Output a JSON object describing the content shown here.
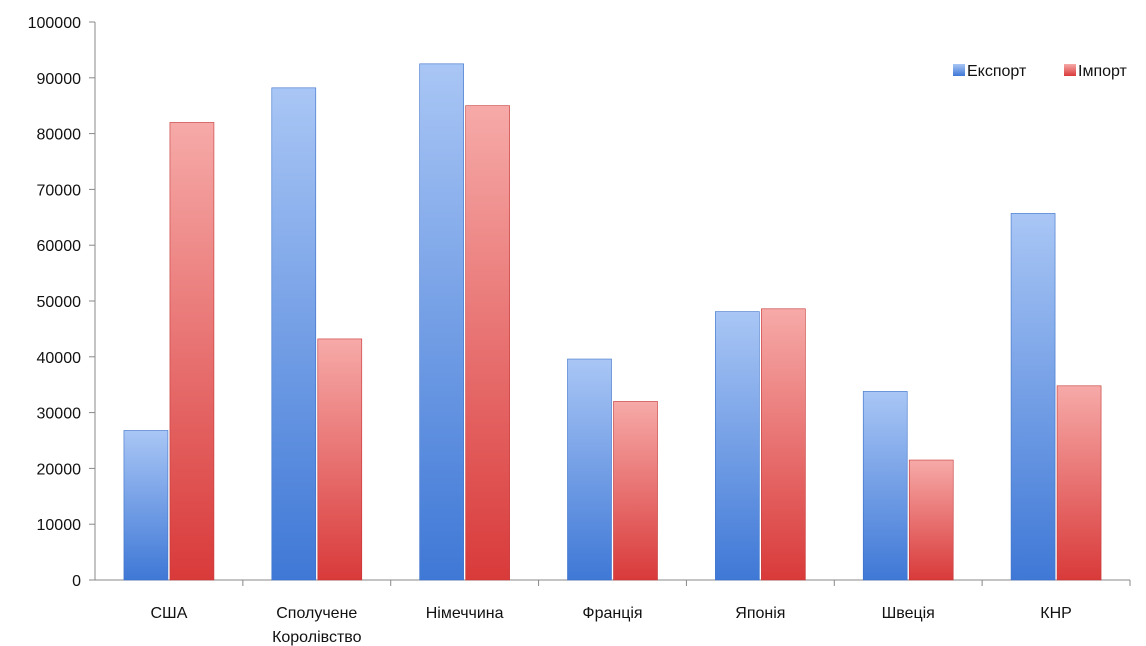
{
  "chart_data": {
    "type": "bar",
    "categories": [
      [
        "США"
      ],
      [
        "Сполучене",
        "Королівство"
      ],
      [
        "Німеччина"
      ],
      [
        "Франція"
      ],
      [
        "Японія"
      ],
      [
        "Швеція"
      ],
      [
        "КНР"
      ]
    ],
    "series": [
      {
        "name": "Експорт",
        "values": [
          26800,
          88200,
          92500,
          39600,
          48100,
          33800,
          65700
        ],
        "color": "#5b8fe0"
      },
      {
        "name": "Імпорт",
        "values": [
          82000,
          43200,
          85000,
          32000,
          48600,
          21500,
          34800
        ],
        "color": "#e06262"
      }
    ],
    "ylim": [
      0,
      100000
    ],
    "yticks": [
      "0",
      "10000",
      "20000",
      "30000",
      "40000",
      "50000",
      "60000",
      "70000",
      "80000",
      "90000",
      "100000"
    ],
    "grid": false,
    "legend_position": "top-right"
  }
}
